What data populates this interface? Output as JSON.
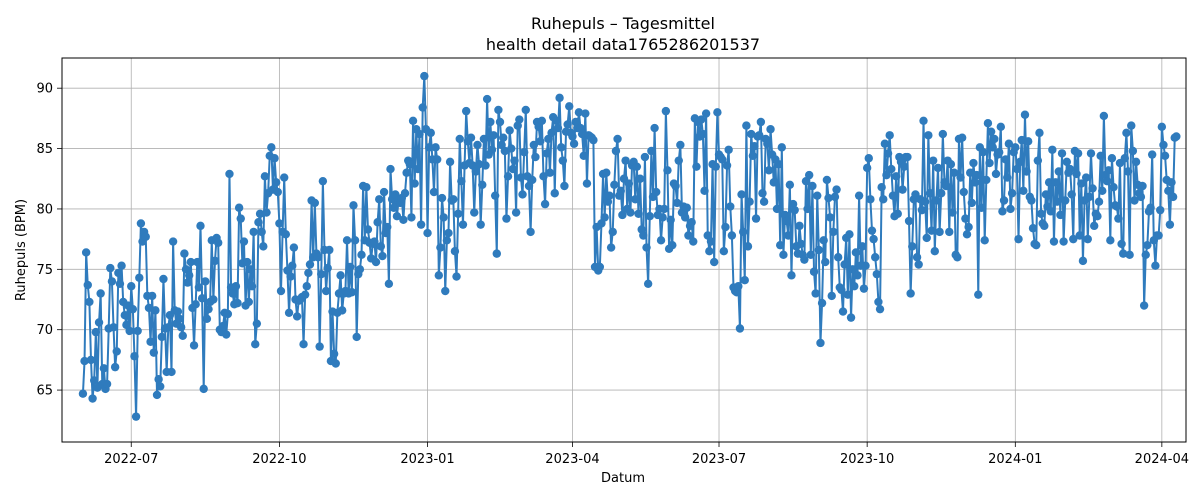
{
  "chart_data": {
    "type": "line",
    "title": "Ruhepuls – Tagesmittel",
    "subtitle": "health detail data1765286201537",
    "xlabel": "Datum",
    "ylabel": "Ruhepuls (BPM)",
    "xlim": [
      "2022-05-19",
      "2024-04-16"
    ],
    "ylim": [
      60.7,
      92.5
    ],
    "x_ticks": [
      "2022-07-01",
      "2022-10-01",
      "2023-01-01",
      "2023-04-01",
      "2023-07-01",
      "2023-10-01",
      "2024-01-01",
      "2024-04-01"
    ],
    "x_tick_labels": [
      "2022-07",
      "2022-10",
      "2023-01",
      "2023-04",
      "2023-07",
      "2023-10",
      "2024-01",
      "2024-04"
    ],
    "y_ticks": [
      65,
      70,
      75,
      80,
      85,
      90
    ],
    "y_tick_labels": [
      "65",
      "70",
      "75",
      "80",
      "85",
      "90"
    ],
    "grid": true,
    "colors": {
      "series": "#2f7bbd"
    },
    "series": [
      {
        "start_date": "2022-06-01",
        "step_days": 1,
        "values": [
          64.7,
          67.4,
          76.4,
          73.7,
          72.3,
          67.5,
          64.3,
          65.8,
          69.8,
          65.2,
          70.6,
          73.0,
          65.5,
          66.8,
          65.1,
          65.5,
          70.1,
          75.1,
          74.0,
          70.2,
          66.9,
          68.2,
          74.7,
          73.8,
          75.3,
          72.3,
          71.2,
          70.4,
          72.0,
          69.9,
          73.6,
          71.7,
          67.8,
          62.8,
          69.9,
          74.3,
          78.8,
          77.3,
          78.1,
          77.7,
          72.8,
          71.8,
          69.0,
          72.8,
          68.1,
          71.6,
          64.6,
          65.9,
          65.3,
          69.4,
          74.2,
          70.1,
          66.5,
          70.2,
          71.2,
          66.5,
          77.3,
          71.6,
          70.5,
          71.5,
          70.9,
          70.2,
          69.5,
          76.3,
          75.0,
          73.9,
          74.5,
          75.6,
          71.8,
          68.7,
          72.1,
          75.6,
          73.5,
          78.6,
          72.6,
          65.1,
          74.0,
          70.9,
          71.7,
          72.3,
          77.4,
          72.5,
          75.7,
          77.6,
          77.2,
          70.0,
          69.8,
          70.3,
          71.4,
          69.6,
          71.3,
          82.9,
          73.5,
          73.0,
          72.1,
          73.6,
          72.2,
          80.1,
          79.2,
          75.5,
          77.3,
          72.0,
          75.6,
          72.3,
          75.0,
          73.6,
          78.1,
          68.8,
          70.5,
          78.9,
          79.6,
          78.1,
          76.9,
          82.7,
          79.7,
          81.3,
          84.4,
          85.1,
          81.6,
          84.2,
          82.2,
          81.4,
          78.8,
          73.2,
          78.1,
          82.6,
          77.9,
          74.9,
          71.4,
          74.4,
          75.3,
          76.8,
          72.5,
          71.1,
          72.4,
          72.5,
          72.7,
          68.8,
          72.9,
          73.6,
          74.7,
          75.4,
          80.7,
          76.0,
          80.5,
          76.3,
          76.0,
          68.6,
          74.6,
          82.3,
          76.6,
          73.2,
          75.1,
          76.6,
          67.4,
          71.5,
          68.0,
          67.2,
          71.4,
          73.0,
          74.5,
          71.6,
          73.0,
          73.2,
          77.4,
          73.0,
          75.2,
          73.1,
          80.3,
          77.4,
          69.4,
          74.6,
          75.0,
          76.2,
          81.9,
          77.4,
          81.8,
          78.3,
          77.2,
          75.9,
          77.1,
          77.3,
          75.6,
          78.9,
          80.8,
          76.9,
          76.1,
          81.4,
          78.0,
          78.5,
          73.8,
          83.3,
          80.8,
          80.1,
          81.2,
          79.4,
          80.7,
          80.5,
          80.9,
          79.1,
          81.3,
          83.0,
          84.0,
          83.7,
          79.3,
          87.3,
          82.1,
          86.6,
          83.3,
          86.2,
          78.7,
          88.4,
          91.0,
          86.6,
          78.0,
          85.1,
          86.3,
          84.1,
          81.4,
          85.1,
          84.1,
          74.5,
          76.8,
          80.9,
          79.3,
          73.2,
          77.4,
          78.0,
          83.9,
          80.7,
          80.8,
          76.5,
          74.4,
          79.6,
          85.8,
          82.3,
          78.7,
          83.6,
          88.1,
          85.6,
          83.8,
          85.9,
          83.6,
          79.7,
          83.1,
          85.3,
          83.7,
          78.7,
          82.0,
          85.8,
          83.6,
          89.1,
          84.5,
          87.2,
          84.9,
          86.1,
          81.1,
          76.3,
          88.2,
          87.2,
          85.3,
          85.9,
          84.8,
          79.2,
          82.7,
          86.5,
          85.0,
          83.3,
          84.0,
          79.7,
          86.9,
          87.4,
          82.6,
          81.2,
          84.7,
          88.2,
          82.7,
          81.9,
          78.1,
          82.4,
          85.3,
          84.3,
          87.2,
          86.8,
          85.6,
          87.3,
          82.7,
          80.4,
          84.6,
          85.8,
          83.0,
          86.3,
          87.6,
          81.3,
          87.3,
          86.7,
          89.2,
          85.1,
          84.0,
          81.9,
          86.4,
          87.0,
          88.5,
          86.3,
          86.0,
          85.4,
          87.2,
          86.7,
          88.0,
          86.7,
          86.2,
          84.4,
          87.9,
          82.1,
          86.1,
          86.0,
          85.9,
          85.7,
          75.2,
          78.5,
          74.9,
          75.2,
          78.8,
          82.9,
          79.3,
          83.0,
          80.6,
          81.1,
          76.8,
          78.1,
          82.0,
          84.8,
          85.8,
          81.1,
          81.5,
          79.5,
          82.5,
          84.0,
          80.0,
          82.1,
          79.7,
          83.6,
          83.9,
          80.8,
          83.5,
          79.6,
          82.5,
          78.3,
          77.8,
          84.3,
          76.8,
          73.8,
          79.4,
          84.8,
          81.0,
          86.7,
          81.4,
          79.5,
          80.0,
          77.4,
          79.3,
          80.0,
          88.1,
          83.2,
          76.7,
          79.1,
          77.0,
          82.1,
          81.9,
          80.5,
          84.0,
          85.3,
          79.7,
          80.2,
          79.3,
          80.1,
          77.8,
          78.6,
          78.9,
          77.3,
          87.5,
          83.5,
          87.2,
          86.0,
          87.4,
          86.2,
          81.5,
          87.9,
          77.8,
          76.5,
          77.3,
          83.7,
          75.6,
          83.5,
          88.0,
          84.5,
          84.3,
          84.1,
          76.5,
          78.5,
          83.6,
          84.9,
          80.2,
          77.8,
          73.5,
          73.2,
          73.1,
          73.6,
          70.1,
          81.2,
          78.1,
          74.1,
          86.9,
          76.9,
          80.6,
          86.2,
          84.4,
          85.2,
          79.2,
          86.0,
          86.1,
          87.2,
          81.3,
          80.6,
          85.8,
          85.4,
          83.2,
          86.6,
          84.5,
          82.2,
          84.1,
          80.0,
          83.7,
          77.0,
          85.1,
          76.2,
          79.5,
          79.0,
          77.8,
          82.0,
          74.5,
          80.4,
          79.9,
          76.9,
          76.3,
          78.6,
          77.1,
          76.2,
          75.8,
          82.3,
          80.0,
          82.8,
          76.2,
          81.9,
          74.8,
          73.0,
          81.1,
          76.6,
          68.9,
          72.2,
          77.4,
          75.6,
          82.4,
          80.9,
          79.3,
          72.8,
          78.1,
          81.0,
          81.6,
          76.0,
          73.5,
          73.3,
          71.5,
          75.4,
          77.6,
          72.9,
          77.9,
          71.0,
          75.0,
          73.6,
          76.4,
          74.5,
          81.1,
          75.3,
          76.9,
          73.4,
          75.3,
          83.4,
          84.2,
          80.8,
          78.2,
          77.5,
          76.0,
          74.6,
          72.3,
          71.7,
          81.8,
          80.8,
          85.4,
          82.8,
          84.6,
          86.1,
          83.3,
          81.1,
          79.4,
          82.7,
          79.6,
          84.3,
          83.9,
          81.6,
          83.5,
          84.3,
          84.3,
          79.0,
          73.0,
          76.9,
          80.8,
          81.2,
          76.0,
          75.4,
          80.8,
          79.9,
          87.3,
          80.6,
          77.6,
          86.1,
          81.3,
          78.2,
          84.0,
          76.5,
          80.7,
          83.4,
          78.1,
          81.3,
          86.2,
          82.2,
          81.9,
          84.0,
          78.1,
          83.7,
          79.7,
          83.0,
          76.2,
          76.0,
          85.8,
          82.6,
          85.9,
          81.4,
          79.2,
          77.9,
          78.5,
          83.0,
          80.5,
          83.8,
          82.2,
          82.8,
          72.9,
          85.1,
          80.1,
          84.7,
          77.4,
          82.4,
          87.1,
          83.8,
          86.4,
          85.1,
          85.8,
          82.9,
          84.5,
          84.7,
          86.8,
          79.8,
          80.7,
          84.1,
          82.6,
          85.4,
          80.0,
          81.3,
          84.7,
          85.1,
          83.3,
          77.5,
          83.9,
          85.7,
          81.5,
          87.8,
          83.1,
          85.6,
          81.0,
          80.7,
          78.4,
          77.1,
          77.0,
          84.0,
          86.3,
          79.6,
          78.8,
          78.6,
          81.2,
          80.2,
          82.2,
          79.8,
          84.9,
          77.3,
          82.2,
          80.6,
          83.1,
          79.5,
          84.6,
          77.3,
          80.7,
          83.9,
          83.0,
          83.3,
          81.2,
          77.5,
          84.8,
          82.9,
          84.6,
          77.8,
          82.1,
          75.7,
          80.7,
          82.6,
          77.5,
          81.0,
          84.6,
          81.7,
          78.6,
          79.6,
          79.4,
          80.6,
          84.4,
          81.5,
          87.7,
          82.8,
          82.3,
          83.2,
          77.4,
          84.2,
          81.8,
          80.3,
          80.2,
          79.2,
          83.8,
          77.1,
          76.3,
          84.2,
          86.3,
          83.1,
          76.2,
          86.9,
          84.8,
          80.7,
          83.9,
          82.0,
          81.3,
          81.0,
          81.9,
          72.0,
          76.2,
          77.0,
          79.8,
          80.1,
          84.5,
          77.4,
          75.3,
          77.8,
          77.8,
          79.9,
          86.8,
          85.3,
          84.4,
          82.4,
          81.5,
          78.7,
          82.2,
          81.0,
          85.9,
          86.0
        ]
      }
    ]
  }
}
